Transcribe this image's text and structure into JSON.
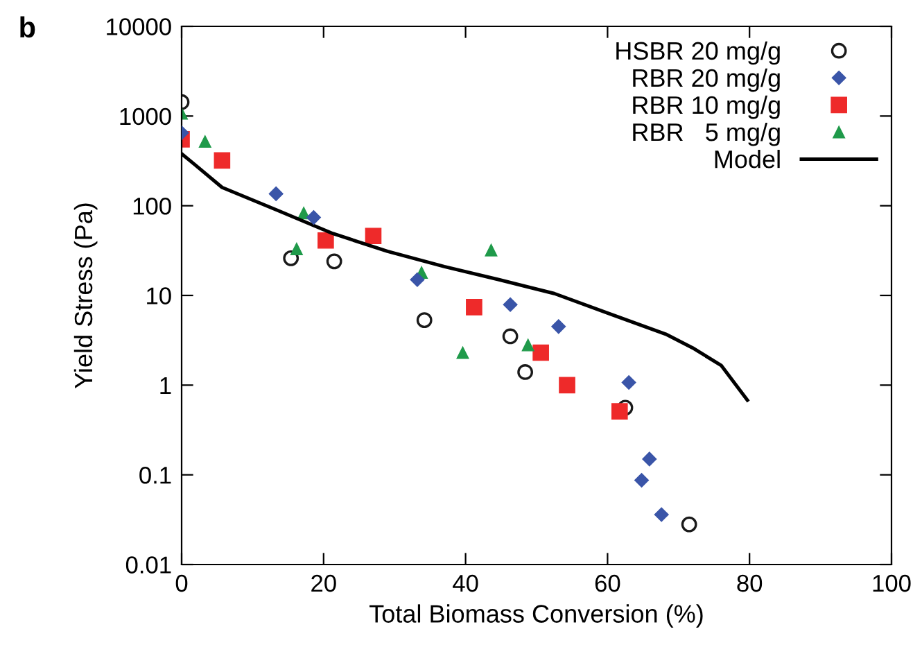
{
  "chart_data": {
    "type": "scatter",
    "xlabel": "Total Biomass Conversion (%)",
    "ylabel": "Yield Stress (Pa)",
    "annotations": [
      "b"
    ],
    "log": "y",
    "xlim": [
      0,
      100
    ],
    "ylim": [
      0.01,
      10000
    ],
    "xticks": [
      0,
      20,
      40,
      60,
      80,
      100
    ],
    "yticks": [
      0.01,
      0.1,
      1,
      10,
      100,
      1000,
      10000
    ],
    "grid": false,
    "legend": "top right",
    "series": [
      {
        "name": "HSBR 20 mg/g",
        "color": "#1a1a1a",
        "marker": "circle",
        "x": [
          0,
          15.4,
          21.5,
          34.2,
          46.3,
          48.4,
          62.5,
          71.5
        ],
        "values": [
          1430,
          26,
          24,
          5.3,
          3.5,
          1.4,
          0.56,
          0.028
        ]
      },
      {
        "name": "RBR 20 mg/g",
        "color": "#3a55a8",
        "marker": "diamond",
        "x": [
          0,
          13.3,
          18.6,
          33.2,
          46.3,
          53.1,
          63,
          65.9,
          64.8,
          67.6
        ],
        "values": [
          650,
          136,
          74,
          15,
          7.9,
          4.5,
          1.07,
          0.15,
          0.087,
          0.036
        ]
      },
      {
        "name": "RBR 10 mg/g",
        "color": "#ee2a2a",
        "marker": "square",
        "x": [
          0,
          5.7,
          20.3,
          27,
          41.2,
          50.6,
          54.3,
          61.7
        ],
        "values": [
          550,
          320,
          41,
          46,
          7.4,
          2.3,
          1.0,
          0.51
        ]
      },
      {
        "name": "RBR   5 mg/g",
        "color": "#1f9a4a",
        "marker": "triangle",
        "x": [
          0,
          3.3,
          17.2,
          16.2,
          33.8,
          43.6,
          39.6,
          48.8
        ],
        "values": [
          1070,
          520,
          83,
          33,
          18,
          32,
          2.3,
          2.8
        ]
      },
      {
        "name": "Model",
        "type": "line",
        "color": "#000000",
        "marker": "none",
        "line_style": "solid",
        "x": [
          0,
          1.8,
          5.7,
          13.5,
          21.3,
          29,
          37,
          44.7,
          52.5,
          60.4,
          68.2,
          72,
          76,
          79.7
        ],
        "values": [
          380,
          290,
          160,
          89,
          49,
          31,
          21,
          15,
          10.5,
          6.2,
          3.7,
          2.6,
          1.66,
          0.68
        ]
      }
    ]
  }
}
